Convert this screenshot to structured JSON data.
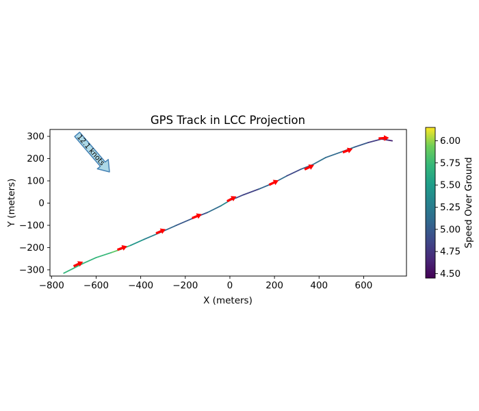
{
  "figure": {
    "background": "#ffffff"
  },
  "chart_data": {
    "type": "line",
    "title": "GPS Track in LCC Projection",
    "xlabel": "X (meters)",
    "ylabel": "Y (meters)",
    "xlim": [
      -807,
      792
    ],
    "ylim": [
      -328,
      331
    ],
    "grid": false,
    "xticks": [
      -800,
      -600,
      -400,
      -200,
      0,
      200,
      400,
      600
    ],
    "xtick_labels": [
      "−800",
      "−600",
      "−400",
      "−200",
      "0",
      "200",
      "400",
      "600"
    ],
    "yticks": [
      -300,
      -200,
      -100,
      0,
      100,
      200,
      300
    ],
    "ytick_labels": [
      "−300",
      "−200",
      "−100",
      "0",
      "100",
      "200",
      "300"
    ],
    "track": {
      "name": "GPS track colored by speed over ground",
      "x": [
        -745,
        -705,
        -660,
        -600,
        -530,
        -490,
        -445,
        -385,
        -310,
        -240,
        -170,
        -100,
        -40,
        0,
        30,
        60,
        130,
        195,
        255,
        320,
        370,
        430,
        500,
        560,
        620,
        680,
        728
      ],
      "y": [
        -315,
        -295,
        -272,
        -245,
        -222,
        -208,
        -190,
        -163,
        -131,
        -100,
        -70,
        -42,
        -12,
        12,
        24,
        37,
        63,
        90,
        122,
        153,
        172,
        205,
        230,
        252,
        272,
        288,
        280
      ],
      "speed": [
        5.7,
        5.72,
        5.75,
        5.65,
        5.8,
        5.95,
        5.5,
        5.4,
        5.15,
        5.0,
        4.95,
        4.9,
        5.35,
        5.3,
        4.9,
        4.85,
        4.8,
        5.3,
        4.9,
        4.85,
        5.3,
        5.0,
        5.2,
        5.05,
        4.9,
        4.7,
        4.6
      ],
      "line_width": 1.8,
      "colormap": "viridis"
    },
    "direction_markers": {
      "shape": "left-pointing-arrow",
      "color": "#ff0000",
      "points": [
        {
          "x": -680,
          "y": -277
        },
        {
          "x": -483,
          "y": -205
        },
        {
          "x": -310,
          "y": -130
        },
        {
          "x": -148,
          "y": -62
        },
        {
          "x": 8,
          "y": 16
        },
        {
          "x": 197,
          "y": 89
        },
        {
          "x": 356,
          "y": 158
        },
        {
          "x": 528,
          "y": 233
        },
        {
          "x": 690,
          "y": 289
        }
      ]
    },
    "annotation": {
      "text": "12.1 knots",
      "tail": {
        "x": -685,
        "y": 309
      },
      "tip": {
        "x": -540,
        "y": 140
      },
      "fill": "#add8e6",
      "edge": "#4682b4",
      "text_color": "#14283c"
    },
    "colorbar": {
      "label": "Speed Over Ground",
      "colormap": "viridis",
      "vmin": 4.45,
      "vmax": 6.15,
      "ticks": [
        4.5,
        4.75,
        5.0,
        5.25,
        5.5,
        5.75,
        6.0
      ],
      "tick_labels": [
        "4.50",
        "4.75",
        "5.00",
        "5.25",
        "5.50",
        "5.75",
        "6.00"
      ],
      "position": "right"
    }
  }
}
